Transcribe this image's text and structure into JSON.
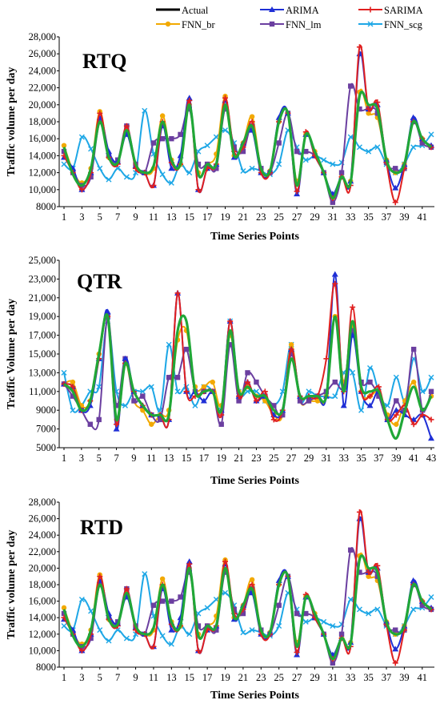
{
  "legend": [
    {
      "name": "Actual",
      "color": "#000000",
      "marker": "none"
    },
    {
      "name": "ARIMA",
      "color": "#1f2fd6",
      "marker": "triangle"
    },
    {
      "name": "SARIMA",
      "color": "#e02020",
      "marker": "plus"
    },
    {
      "name": "FNN_br",
      "color": "#f2a900",
      "marker": "circle"
    },
    {
      "name": "FNN_lm",
      "color": "#6b3fa0",
      "marker": "square"
    },
    {
      "name": "FNN_scg",
      "color": "#1ea7e6",
      "marker": "x"
    }
  ],
  "chart_data": [
    {
      "type": "line",
      "title": "RTQ",
      "xlabel": "Time Series Points",
      "ylabel": "Traffic volume per day",
      "ylim": [
        8000,
        28000
      ],
      "yticks": [
        "8000",
        "10,000",
        "12,000",
        "14,000",
        "16,000",
        "18,000",
        "20,000",
        "22,000",
        "24,000",
        "26,000",
        "28,000"
      ],
      "yticks_values": [
        8000,
        10000,
        12000,
        14000,
        16000,
        18000,
        20000,
        22000,
        24000,
        26000,
        28000
      ],
      "xticks": [
        "1",
        "3",
        "5",
        "7",
        "9",
        "11",
        "13",
        "15",
        "17",
        "19",
        "21",
        "23",
        "25",
        "27",
        "29",
        "31",
        "33",
        "35",
        "37",
        "39",
        "41"
      ],
      "xmax": 42,
      "series": [
        {
          "name": "Actual",
          "values": [
            15000,
            11800,
            10500,
            12500,
            18000,
            13800,
            13200,
            17000,
            13000,
            12000,
            12800,
            18000,
            13500,
            13000,
            20000,
            11800,
            13000,
            13000,
            20000,
            14000,
            15500,
            17500,
            12500,
            12200,
            18000,
            19000,
            10500,
            16500,
            14500,
            12000,
            9000,
            11500,
            10800,
            21000,
            20000,
            19500,
            13500,
            12000,
            13000,
            18000,
            16000,
            15000
          ]
        },
        {
          "name": "ARIMA",
          "values": [
            13800,
            12500,
            10000,
            12000,
            18500,
            14500,
            13300,
            16500,
            12800,
            12000,
            10500,
            17500,
            12500,
            14000,
            20800,
            10000,
            12500,
            13000,
            20500,
            13800,
            15500,
            17000,
            12000,
            12200,
            18500,
            19000,
            9500,
            16500,
            14000,
            12000,
            9500,
            11500,
            11000,
            26000,
            19500,
            20000,
            13500,
            10200,
            13000,
            18500,
            16000,
            15200
          ]
        },
        {
          "name": "SARIMA",
          "values": [
            14000,
            12000,
            10000,
            12000,
            19000,
            13800,
            13000,
            17500,
            12500,
            12000,
            10500,
            18000,
            13200,
            13000,
            20500,
            10000,
            12500,
            13000,
            20800,
            14500,
            15000,
            18000,
            12000,
            12000,
            18000,
            19000,
            9800,
            16800,
            14000,
            12000,
            9000,
            11500,
            10500,
            26800,
            19500,
            20300,
            13200,
            8500,
            12500,
            18000,
            16000,
            15000
          ]
        },
        {
          "name": "FNN_br",
          "values": [
            15200,
            12200,
            10800,
            12500,
            19200,
            13800,
            13300,
            17000,
            13000,
            12000,
            12500,
            18700,
            13500,
            13000,
            20000,
            12000,
            13000,
            14200,
            21000,
            14000,
            15500,
            18600,
            12500,
            12200,
            18000,
            19000,
            11000,
            16500,
            14500,
            12000,
            9000,
            11500,
            11000,
            21500,
            19000,
            18500,
            13500,
            12000,
            13000,
            18000,
            16000,
            15000
          ]
        },
        {
          "name": "FNN_lm",
          "values": [
            14500,
            12000,
            10500,
            11500,
            18000,
            14000,
            13500,
            17500,
            13000,
            12000,
            15500,
            16000,
            16000,
            16500,
            19500,
            13000,
            13000,
            12500,
            19500,
            15000,
            14500,
            17500,
            12500,
            12000,
            15500,
            19000,
            14500,
            14500,
            14000,
            12000,
            8500,
            12000,
            22200,
            19500,
            19500,
            19000,
            13200,
            12500,
            12500,
            18000,
            15500,
            15000
          ]
        },
        {
          "name": "FNN_scg",
          "values": [
            13000,
            12500,
            16200,
            14800,
            12500,
            11200,
            12500,
            11500,
            12000,
            19300,
            14200,
            11800,
            10800,
            13000,
            12000,
            14500,
            15200,
            16200,
            17000,
            15500,
            12200,
            12500,
            12200,
            11800,
            13000,
            17000,
            15000,
            13500,
            14000,
            13500,
            13000,
            13200,
            16200,
            15000,
            14500,
            15000,
            13000,
            12000,
            13000,
            15000,
            15200,
            16500
          ]
        }
      ]
    },
    {
      "type": "line",
      "title": "QTR",
      "xlabel": "Time Series Points",
      "ylabel": "Traffic Volume per day",
      "ylim": [
        5000,
        25000
      ],
      "yticks": [
        "5000",
        "7000",
        "9000",
        "11,000",
        "13,000",
        "15,000",
        "17,000",
        "19,000",
        "21,000",
        "23,000",
        "25,000"
      ],
      "yticks_values": [
        5000,
        7000,
        9000,
        11000,
        13000,
        15000,
        17000,
        19000,
        21000,
        23000,
        25000
      ],
      "xticks": [
        "1",
        "3",
        "5",
        "7",
        "9",
        "11",
        "13",
        "15",
        "17",
        "19",
        "21",
        "23",
        "25",
        "27",
        "29",
        "31",
        "33",
        "35",
        "37",
        "39",
        "41",
        "43"
      ],
      "xmax": 43,
      "series": [
        {
          "name": "Actual",
          "values": [
            11800,
            11000,
            9000,
            10000,
            15000,
            19000,
            8000,
            14000,
            11000,
            9500,
            8500,
            8500,
            8500,
            17500,
            18500,
            11000,
            11000,
            11000,
            9000,
            17500,
            11000,
            11500,
            10500,
            10500,
            9000,
            9000,
            14500,
            10500,
            10500,
            10500,
            10500,
            19000,
            11000,
            18500,
            11500,
            11000,
            11000,
            8000,
            6000,
            9000,
            11500,
            9000,
            10500
          ]
        },
        {
          "name": "ARIMA",
          "values": [
            11800,
            11500,
            9000,
            9500,
            14500,
            19500,
            7000,
            14500,
            11000,
            9500,
            8500,
            8500,
            8000,
            21500,
            11000,
            11000,
            10000,
            11000,
            9000,
            18500,
            10500,
            12000,
            10000,
            10500,
            8500,
            9000,
            15500,
            10500,
            10500,
            10500,
            10500,
            23500,
            9500,
            17000,
            11000,
            9500,
            11000,
            8000,
            9000,
            8500,
            8000,
            8500,
            6000
          ]
        },
        {
          "name": "SARIMA",
          "values": [
            11800,
            11500,
            9000,
            10000,
            14500,
            19000,
            7500,
            14000,
            11000,
            9500,
            8500,
            8500,
            8000,
            21500,
            11000,
            10500,
            11000,
            11000,
            8500,
            18500,
            10500,
            12000,
            10000,
            11000,
            8000,
            9000,
            15500,
            10500,
            10500,
            10500,
            14500,
            22500,
            11000,
            20000,
            11000,
            10500,
            11500,
            8000,
            8500,
            9500,
            7500,
            8500,
            8000
          ]
        },
        {
          "name": "FNN_br",
          "values": [
            11800,
            12000,
            9500,
            10000,
            15000,
            19000,
            8000,
            14000,
            10000,
            9000,
            7500,
            8500,
            9000,
            16500,
            17500,
            11500,
            11500,
            12000,
            9500,
            17000,
            11000,
            11500,
            10500,
            10000,
            8500,
            8500,
            16000,
            10000,
            10000,
            10000,
            10500,
            19000,
            12000,
            18000,
            11000,
            10500,
            11000,
            8500,
            7500,
            10000,
            12000,
            9000,
            10500
          ]
        },
        {
          "name": "FNN_lm",
          "values": [
            11800,
            10500,
            9000,
            7500,
            8000,
            19000,
            9500,
            14500,
            10000,
            10500,
            8500,
            8000,
            12500,
            12500,
            15500,
            11000,
            11000,
            11000,
            7500,
            16000,
            10000,
            13000,
            12000,
            10500,
            9500,
            8500,
            15000,
            10000,
            10000,
            10500,
            11000,
            12000,
            11500,
            17500,
            12000,
            12000,
            10500,
            8000,
            10000,
            9000,
            15500,
            9000,
            11000
          ]
        },
        {
          "name": "FNN_scg",
          "values": [
            13000,
            9000,
            9500,
            11000,
            11500,
            18500,
            11000,
            9500,
            11000,
            11000,
            11500,
            9000,
            16000,
            11000,
            11500,
            9500,
            11500,
            11000,
            9000,
            18500,
            11000,
            11000,
            11000,
            10000,
            9500,
            11000,
            16000,
            10000,
            11000,
            10500,
            10500,
            10500,
            13000,
            13000,
            9000,
            13500,
            11000,
            9500,
            12500,
            10000,
            14500,
            11000,
            12500
          ]
        }
      ]
    },
    {
      "type": "line",
      "title": "RTD",
      "xlabel": "Time Series Points",
      "ylabel": "Traffic volume per day",
      "ylim": [
        8000,
        28000
      ],
      "yticks": [
        "8000",
        "10,000",
        "12,000",
        "14,000",
        "16,000",
        "18,000",
        "20,000",
        "22,000",
        "24,000",
        "26,000",
        "28,000"
      ],
      "yticks_values": [
        8000,
        10000,
        12000,
        14000,
        16000,
        18000,
        20000,
        22000,
        24000,
        26000,
        28000
      ],
      "xticks": [
        "1",
        "3",
        "5",
        "7",
        "9",
        "11",
        "13",
        "15",
        "17",
        "19",
        "21",
        "23",
        "25",
        "27",
        "29",
        "31",
        "33",
        "35",
        "37",
        "39",
        "41"
      ],
      "xmax": 42,
      "series": [
        {
          "name": "Actual",
          "values": [
            15000,
            11800,
            10500,
            12500,
            18000,
            13800,
            13200,
            17000,
            13000,
            12000,
            12800,
            18000,
            13500,
            13000,
            20000,
            11800,
            13000,
            13000,
            20000,
            14000,
            15500,
            17500,
            12500,
            12200,
            18000,
            19000,
            10500,
            16500,
            14500,
            12000,
            9000,
            11500,
            10800,
            21000,
            20000,
            19500,
            13500,
            12000,
            13000,
            18000,
            16000,
            15000
          ]
        },
        {
          "name": "ARIMA",
          "values": [
            13800,
            12500,
            10000,
            12000,
            18500,
            14500,
            13300,
            16500,
            12800,
            12000,
            10500,
            17500,
            12500,
            14000,
            20800,
            10000,
            12500,
            13000,
            20500,
            13800,
            15500,
            17000,
            12000,
            12200,
            18500,
            19000,
            9500,
            16500,
            14000,
            12000,
            9500,
            11500,
            11000,
            26000,
            19500,
            20000,
            13500,
            10200,
            13000,
            18500,
            16000,
            15200
          ]
        },
        {
          "name": "SARIMA",
          "values": [
            14000,
            12000,
            10000,
            12000,
            19000,
            13800,
            13000,
            17500,
            12500,
            12000,
            10500,
            18000,
            13200,
            13000,
            20500,
            10000,
            12500,
            13000,
            20800,
            14500,
            15000,
            18000,
            12000,
            12000,
            18000,
            19000,
            9800,
            16800,
            14000,
            12000,
            9000,
            11500,
            10500,
            26800,
            19500,
            20300,
            13200,
            8500,
            12500,
            18000,
            16000,
            15000
          ]
        },
        {
          "name": "FNN_br",
          "values": [
            15200,
            12200,
            10800,
            12500,
            19200,
            13800,
            13300,
            17000,
            13000,
            12000,
            12500,
            18700,
            13500,
            13000,
            20000,
            12000,
            13000,
            14200,
            21000,
            14000,
            15500,
            18600,
            12500,
            12200,
            18000,
            19000,
            11000,
            16500,
            14500,
            12000,
            9000,
            11500,
            11000,
            21500,
            19000,
            18500,
            13500,
            12000,
            13000,
            18000,
            16000,
            15000
          ]
        },
        {
          "name": "FNN_lm",
          "values": [
            14500,
            12000,
            10500,
            11500,
            18000,
            14000,
            13500,
            17500,
            13000,
            12000,
            15500,
            16000,
            16000,
            16500,
            19500,
            13000,
            13000,
            12500,
            19500,
            15000,
            14500,
            17500,
            12500,
            12000,
            15500,
            19000,
            14500,
            14500,
            14000,
            12000,
            8500,
            12000,
            22200,
            19500,
            19500,
            19000,
            13200,
            12500,
            12500,
            18000,
            15500,
            15000
          ]
        },
        {
          "name": "FNN_scg",
          "values": [
            13000,
            12500,
            16200,
            14800,
            12500,
            11200,
            12500,
            11500,
            12000,
            19300,
            14200,
            11800,
            10800,
            13000,
            12000,
            14500,
            15200,
            16200,
            17000,
            15500,
            12200,
            12500,
            12200,
            11800,
            13000,
            17000,
            15000,
            13500,
            14000,
            13500,
            13000,
            13200,
            16200,
            15000,
            14500,
            15000,
            13000,
            12000,
            13000,
            15000,
            15200,
            16500
          ]
        }
      ]
    }
  ]
}
